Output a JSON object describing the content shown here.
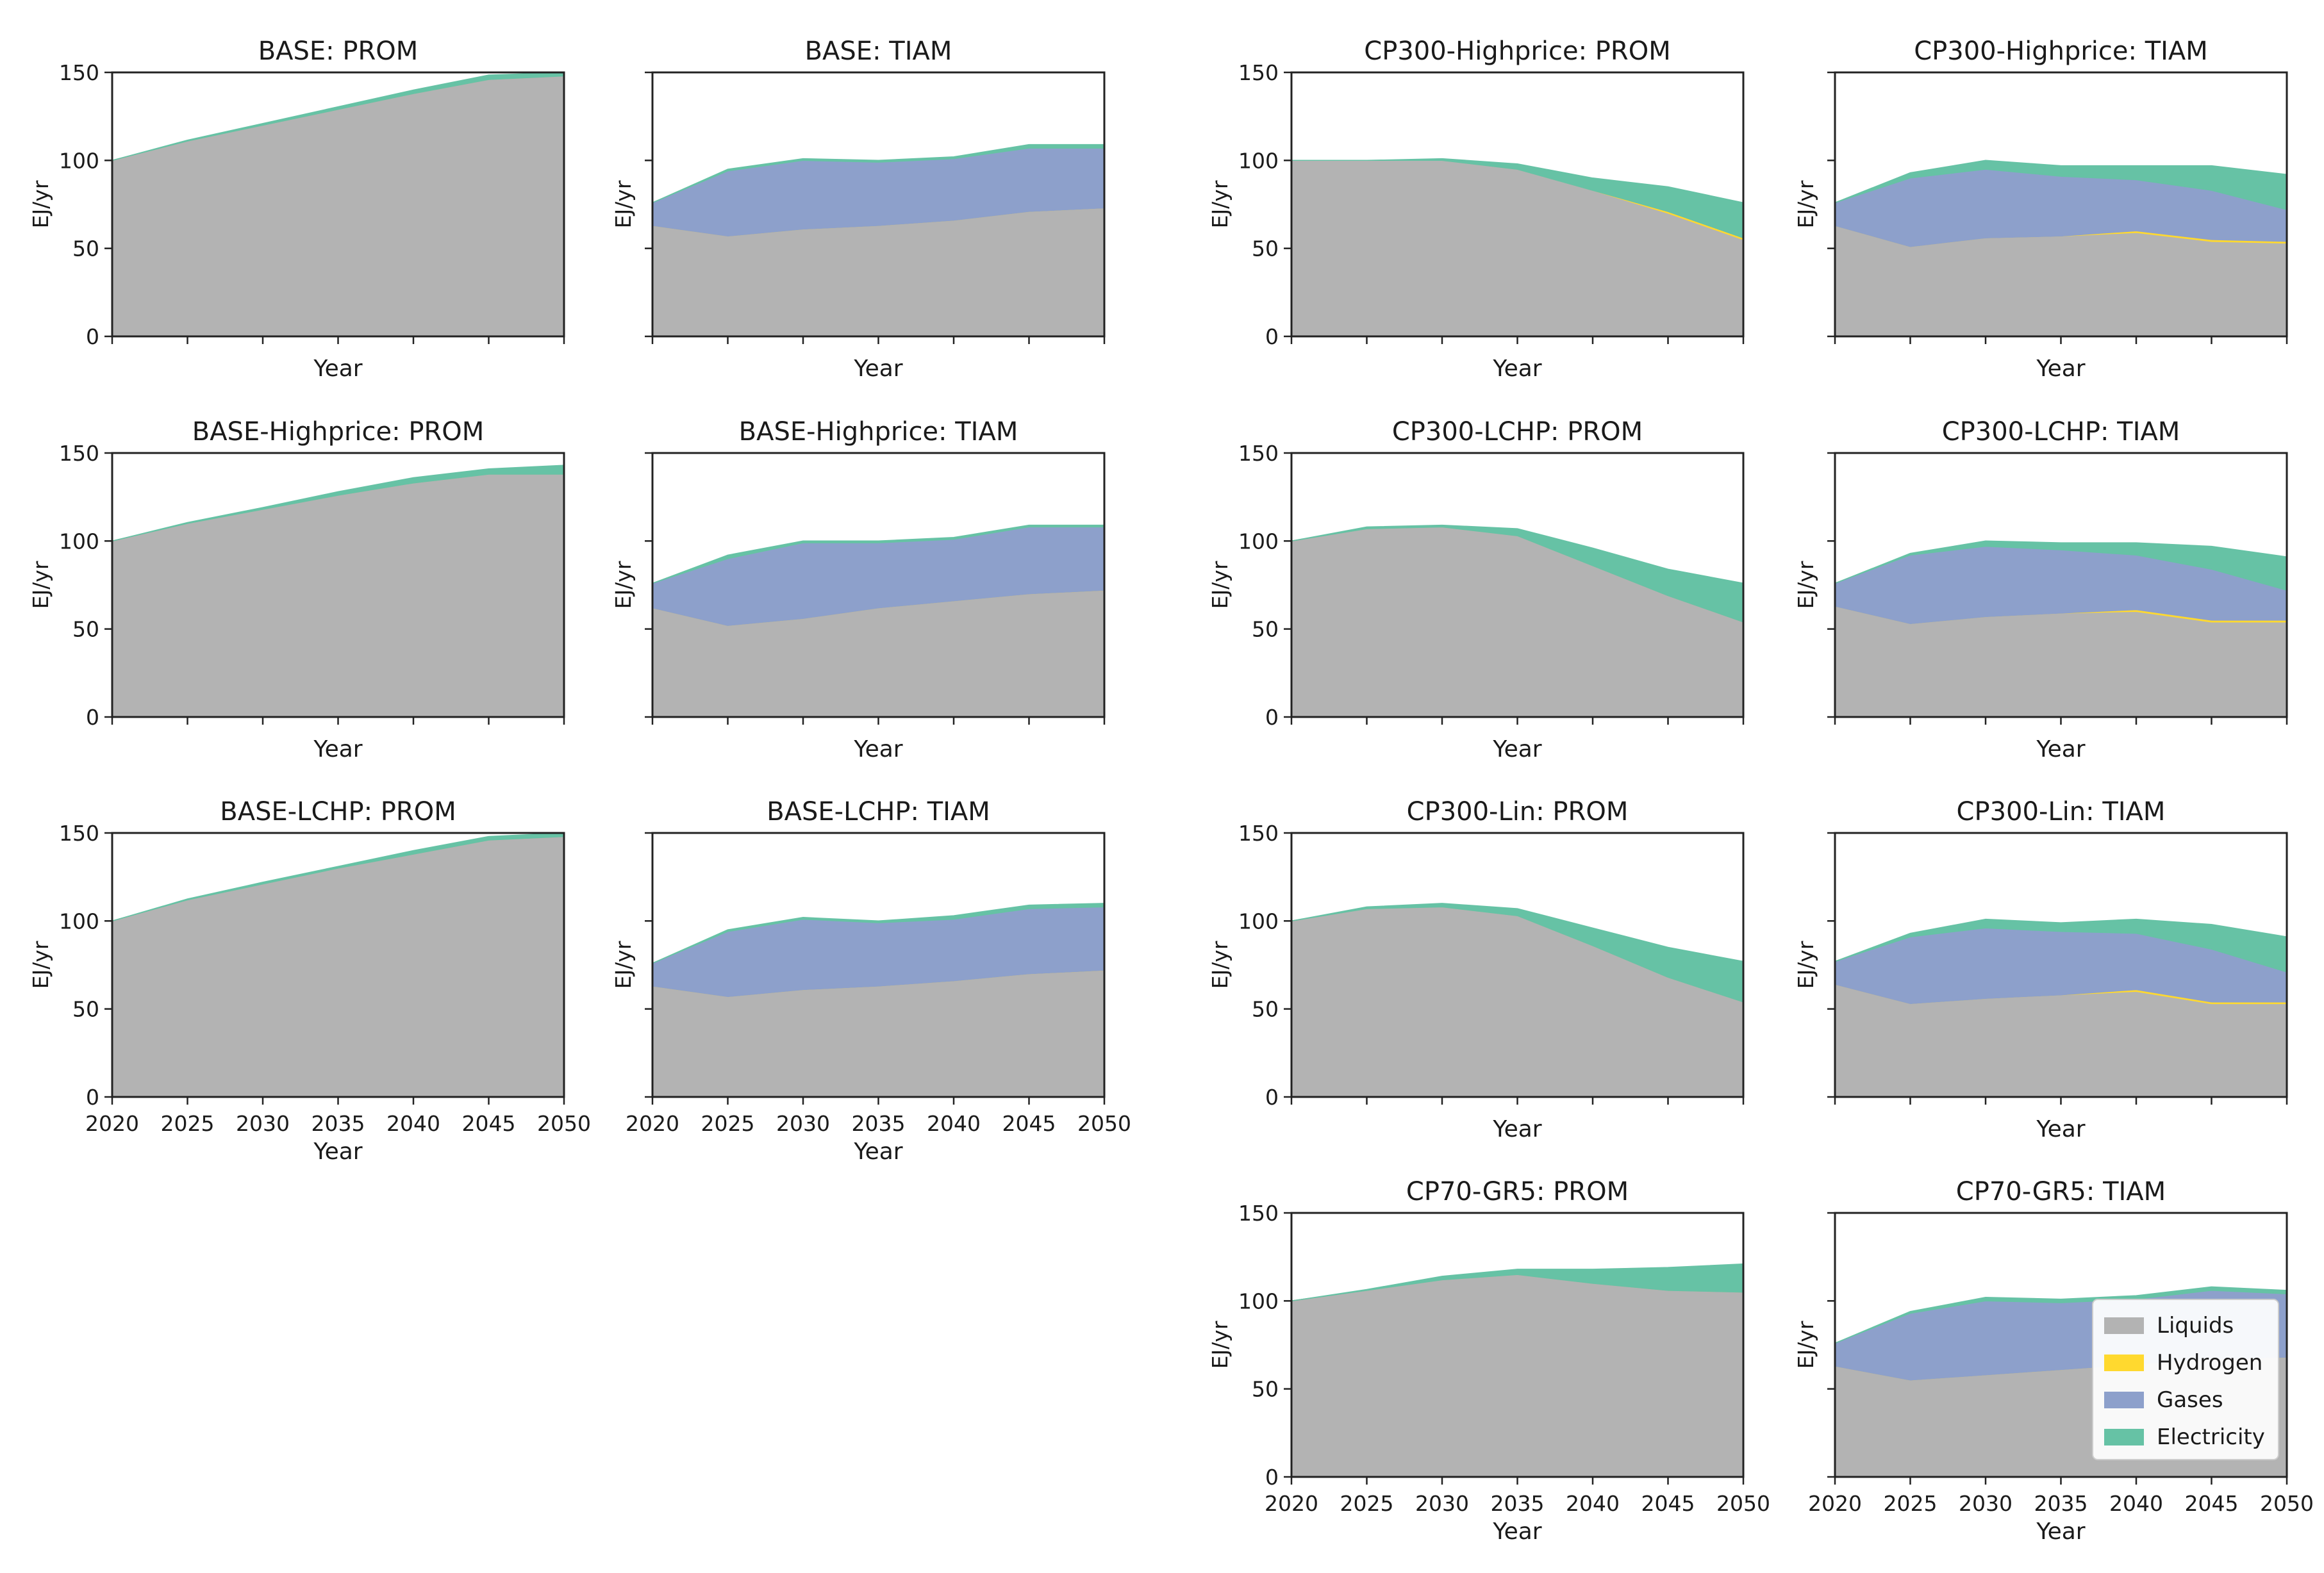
{
  "chart_data": {
    "type": "area",
    "layout": "small-multiples",
    "x": [
      2020,
      2025,
      2030,
      2035,
      2040,
      2045,
      2050
    ],
    "xticks": [
      "2020",
      "2025",
      "2030",
      "2035",
      "2040",
      "2045",
      "2050"
    ],
    "xlabel": "Year",
    "ylabel": "EJ/yr",
    "ylim": [
      0,
      150
    ],
    "yticks": [
      "0",
      "50",
      "100",
      "150"
    ],
    "legend": {
      "placement": "lower-right of CP70-GR5: TIAM panel",
      "entries": [
        {
          "name": "Liquids",
          "color": "#b3b3b3"
        },
        {
          "name": "Hydrogen",
          "color": "#ffd92f"
        },
        {
          "name": "Gases",
          "color": "#8da0cb"
        },
        {
          "name": "Electricity",
          "color": "#66c2a5"
        }
      ]
    },
    "panels": [
      {
        "title": "BASE: PROM",
        "series": {
          "Liquids": [
            100,
            111,
            120,
            129,
            138,
            146,
            148
          ],
          "Hydrogen": [
            0,
            0,
            0,
            0,
            0,
            0,
            0
          ],
          "Gases": [
            0,
            0,
            0,
            0,
            0,
            0,
            0
          ],
          "Electricity": [
            0,
            0.5,
            1,
            1.5,
            2,
            2.5,
            2
          ]
        }
      },
      {
        "title": "BASE: TIAM",
        "series": {
          "Liquids": [
            63,
            57,
            61,
            63,
            66,
            71,
            73
          ],
          "Hydrogen": [
            0,
            0,
            0,
            0,
            0,
            0,
            0
          ],
          "Gases": [
            13,
            37,
            39,
            36,
            35,
            36,
            34
          ],
          "Electricity": [
            0,
            1,
            1,
            1,
            1,
            2,
            2
          ]
        }
      },
      {
        "title": "CP300-Highprice: PROM",
        "series": {
          "Liquids": [
            100,
            100,
            100,
            95,
            83,
            70,
            55
          ],
          "Hydrogen": [
            0,
            0,
            0,
            0,
            0,
            1,
            1
          ],
          "Gases": [
            0,
            0,
            0,
            0,
            0,
            0,
            0
          ],
          "Electricity": [
            0,
            0,
            1,
            3,
            7,
            14,
            20
          ]
        }
      },
      {
        "title": "CP300-Highprice: TIAM",
        "series": {
          "Liquids": [
            63,
            51,
            56,
            57,
            59,
            54,
            53
          ],
          "Hydrogen": [
            0,
            0,
            0,
            0,
            1,
            1,
            1
          ],
          "Gases": [
            13,
            39,
            39,
            34,
            29,
            28,
            18
          ],
          "Electricity": [
            0,
            3,
            5,
            6,
            8,
            14,
            20
          ]
        }
      },
      {
        "title": "BASE-Highprice: PROM",
        "series": {
          "Liquids": [
            100,
            110,
            118,
            126,
            133,
            138,
            138
          ],
          "Hydrogen": [
            0,
            0,
            0,
            0,
            0,
            0,
            0
          ],
          "Gases": [
            0,
            0,
            0,
            0,
            0,
            0,
            0
          ],
          "Electricity": [
            0,
            0.5,
            1,
            2,
            3,
            3,
            5
          ]
        }
      },
      {
        "title": "BASE-Highprice: TIAM",
        "series": {
          "Liquids": [
            62,
            52,
            56,
            62,
            66,
            70,
            72
          ],
          "Hydrogen": [
            0,
            0,
            0,
            0,
            0,
            0,
            0
          ],
          "Gases": [
            14,
            38,
            43,
            37,
            35,
            38,
            36
          ],
          "Electricity": [
            0,
            2,
            1,
            1,
            1,
            1,
            1
          ]
        }
      },
      {
        "title": "CP300-LCHP: PROM",
        "series": {
          "Liquids": [
            100,
            107,
            108,
            103,
            86,
            69,
            54
          ],
          "Hydrogen": [
            0,
            0,
            0,
            0,
            0,
            0,
            0
          ],
          "Gases": [
            0,
            0,
            0,
            0,
            0,
            0,
            0
          ],
          "Electricity": [
            0,
            1,
            1,
            4,
            10,
            15,
            22
          ]
        }
      },
      {
        "title": "CP300-LCHP: TIAM",
        "series": {
          "Liquids": [
            63,
            53,
            57,
            59,
            60,
            54,
            54
          ],
          "Hydrogen": [
            0,
            0,
            0,
            0,
            1,
            1,
            1
          ],
          "Gases": [
            13,
            39,
            40,
            36,
            31,
            29,
            17
          ],
          "Electricity": [
            0,
            1,
            3,
            4,
            7,
            13,
            19
          ]
        }
      },
      {
        "title": "BASE-LCHP: PROM",
        "series": {
          "Liquids": [
            100,
            112,
            121,
            130,
            138,
            146,
            148
          ],
          "Hydrogen": [
            0,
            0,
            0,
            0,
            0,
            0,
            0
          ],
          "Gases": [
            0,
            0,
            0,
            0,
            0,
            0,
            0
          ],
          "Electricity": [
            0,
            0.5,
            1,
            1,
            2,
            2,
            2
          ]
        }
      },
      {
        "title": "BASE-LCHP: TIAM",
        "series": {
          "Liquids": [
            63,
            57,
            61,
            63,
            66,
            70,
            72
          ],
          "Hydrogen": [
            0,
            0,
            0,
            0,
            0,
            0,
            0
          ],
          "Gases": [
            13,
            37,
            40,
            36,
            35,
            37,
            36
          ],
          "Electricity": [
            0,
            1,
            1,
            1,
            2,
            2,
            2
          ]
        }
      },
      {
        "title": "CP300-Lin: PROM",
        "series": {
          "Liquids": [
            100,
            107,
            108,
            103,
            86,
            68,
            54
          ],
          "Hydrogen": [
            0,
            0,
            0,
            0,
            0,
            0,
            0
          ],
          "Gases": [
            0,
            0,
            0,
            0,
            0,
            0,
            0
          ],
          "Electricity": [
            0,
            1,
            2,
            4,
            10,
            17,
            23
          ]
        }
      },
      {
        "title": "CP300-Lin: TIAM",
        "series": {
          "Liquids": [
            64,
            53,
            56,
            58,
            60,
            53,
            53
          ],
          "Hydrogen": [
            0,
            0,
            0,
            0,
            1,
            1,
            1
          ],
          "Gases": [
            13,
            38,
            40,
            36,
            32,
            30,
            17
          ],
          "Electricity": [
            0,
            2,
            5,
            5,
            8,
            14,
            20
          ]
        }
      },
      {
        "title": "CP70-GR5: PROM",
        "series": {
          "Liquids": [
            100,
            106,
            112,
            115,
            110,
            106,
            105
          ],
          "Hydrogen": [
            0,
            0,
            0,
            0,
            0,
            0,
            0
          ],
          "Gases": [
            0,
            0,
            0,
            0,
            0,
            0,
            0
          ],
          "Electricity": [
            0,
            0.5,
            2,
            3,
            8,
            13,
            16
          ]
        }
      },
      {
        "title": "CP70-GR5: TIAM",
        "series": {
          "Liquids": [
            63,
            55,
            58,
            61,
            64,
            67,
            68
          ],
          "Hydrogen": [
            0,
            0,
            0,
            0,
            0,
            0,
            0
          ],
          "Gases": [
            13,
            38,
            42,
            38,
            37,
            39,
            36
          ],
          "Electricity": [
            0,
            1,
            2,
            2,
            2,
            2,
            2
          ]
        }
      }
    ]
  }
}
